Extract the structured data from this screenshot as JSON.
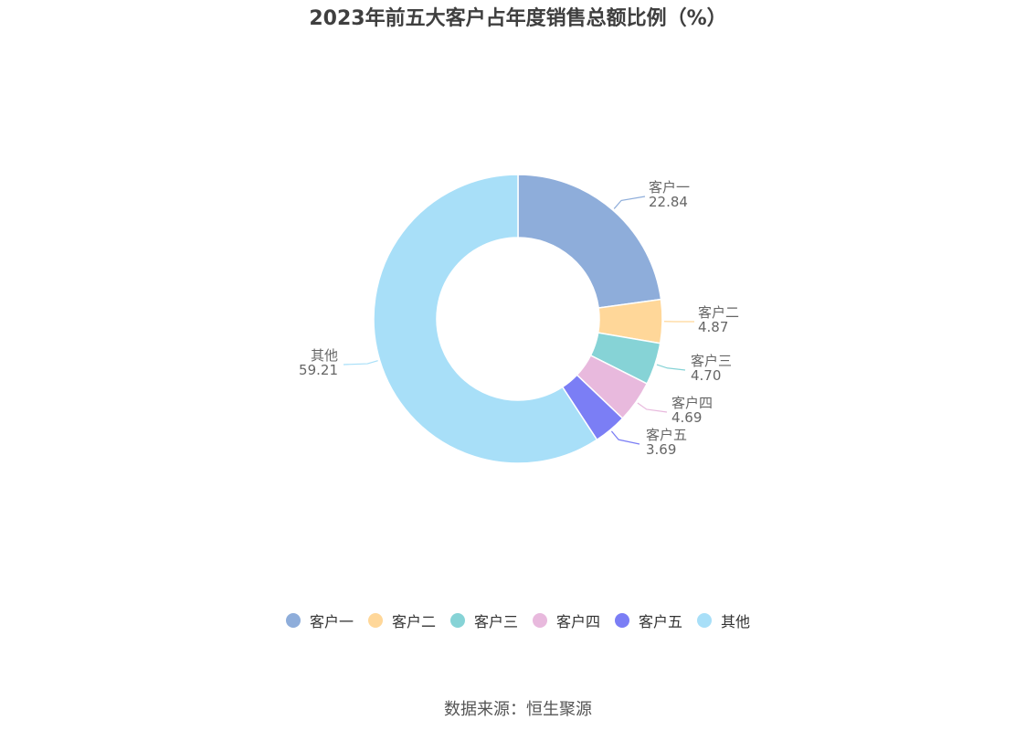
{
  "title": "2023年前五大客户占年度销售总额比例（%）",
  "source": "数据来源：恒生聚源",
  "chart_data": {
    "type": "pie",
    "donut": true,
    "legend_position": "bottom",
    "slices": [
      {
        "name": "客户一",
        "value": 22.84,
        "label": "22.84",
        "color": "#8eadda"
      },
      {
        "name": "客户二",
        "value": 4.87,
        "label": "4.87",
        "color": "#ffd799"
      },
      {
        "name": "客户三",
        "value": 4.7,
        "label": "4.70",
        "color": "#86d3d6"
      },
      {
        "name": "客户四",
        "value": 4.69,
        "label": "4.69",
        "color": "#e8b9dd"
      },
      {
        "name": "客户五",
        "value": 3.69,
        "label": "3.69",
        "color": "#7b7ef5"
      },
      {
        "name": "其他",
        "value": 59.21,
        "label": "59.21",
        "color": "#a8dff8"
      }
    ]
  }
}
